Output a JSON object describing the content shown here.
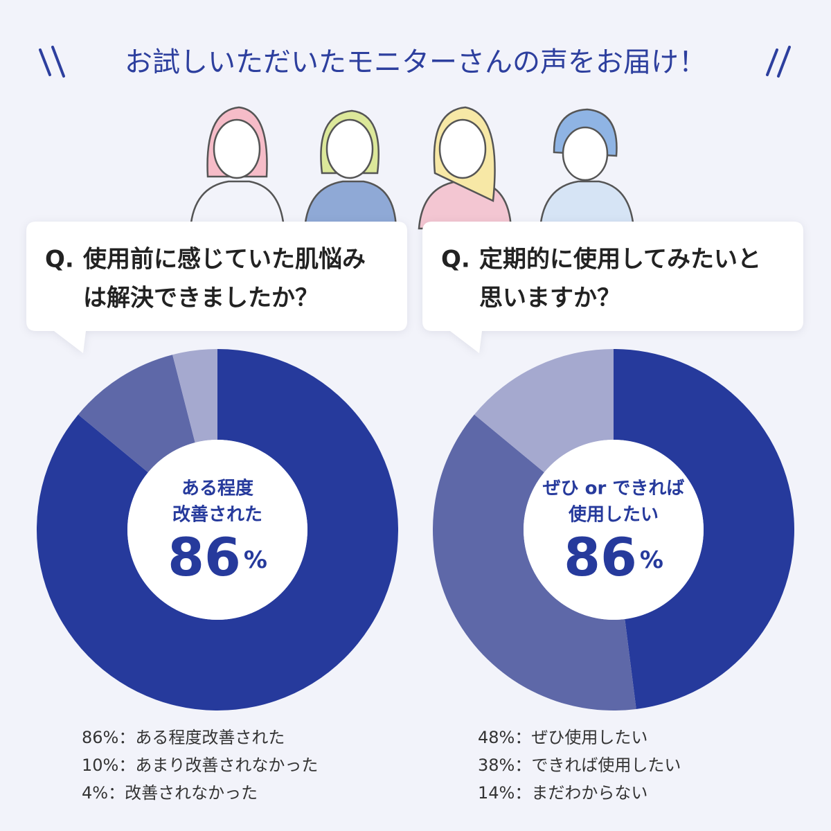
{
  "header": {
    "title": "お試しいただいたモニターさんの声をお届け！"
  },
  "chart_data": [
    {
      "type": "pie",
      "question_prefix": "Q.",
      "question": [
        "使用前に感じていた肌悩み",
        "は解決できましたか？"
      ],
      "categories": [
        "ある程度改善された",
        "あまり改善されなかった",
        "改善されなかった"
      ],
      "values": [
        86,
        10,
        4
      ],
      "value_labels": [
        "86%",
        "10%",
        "4%"
      ],
      "colors": [
        "#263a9c",
        "#5e68a8",
        "#a5a9cf"
      ],
      "center_label": [
        "ある程度",
        "改善された"
      ],
      "center_value": 86,
      "center_unit": "%",
      "legend_separator": "："
    },
    {
      "type": "pie",
      "question_prefix": "Q.",
      "question": [
        "定期的に使用してみたいと",
        "思いますか？"
      ],
      "categories": [
        "ぜひ使用したい",
        "できれば使用したい",
        "まだわからない"
      ],
      "values": [
        48,
        38,
        14
      ],
      "value_labels": [
        "48%",
        "38%",
        "14%"
      ],
      "colors": [
        "#263a9c",
        "#5e68a8",
        "#a5a9cf"
      ],
      "center_label": [
        "ぜひ or できれば",
        "使用したい"
      ],
      "center_value": 86,
      "center_unit": "%",
      "legend_separator": "："
    }
  ]
}
